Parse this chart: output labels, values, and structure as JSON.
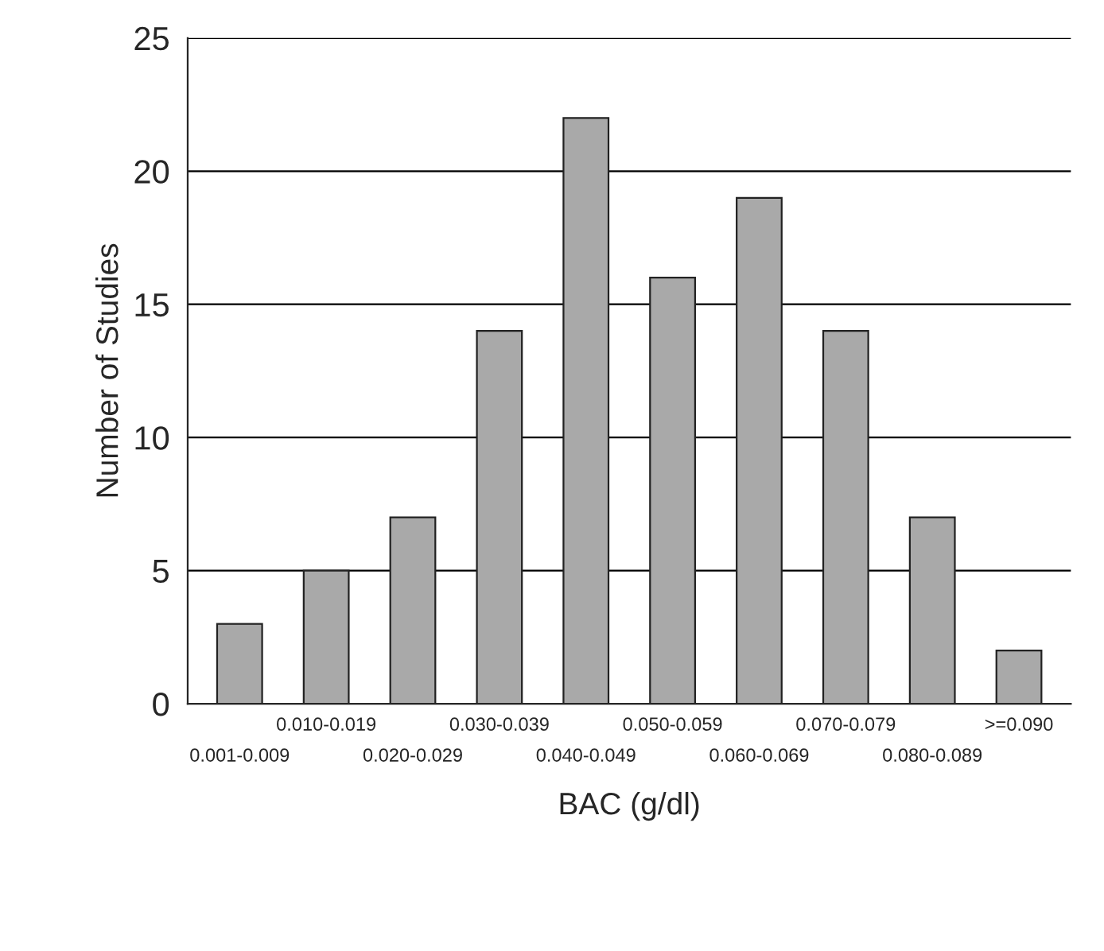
{
  "chart_data": {
    "type": "bar",
    "xlabel": "BAC (g/dl)",
    "ylabel": "Number of Studies",
    "categories": [
      "0.001-0.009",
      "0.010-0.019",
      "0.020-0.029",
      "0.030-0.039",
      "0.040-0.049",
      "0.050-0.059",
      "0.060-0.069",
      "0.070-0.079",
      "0.080-0.089",
      ">=0.090"
    ],
    "values": [
      3,
      5,
      7,
      14,
      22,
      16,
      19,
      14,
      7,
      2
    ],
    "color": "#a9a9a9",
    "ylim": [
      0,
      25
    ],
    "yticks": [
      0,
      5,
      10,
      15,
      20,
      25
    ],
    "grid": "y",
    "legend": false
  }
}
